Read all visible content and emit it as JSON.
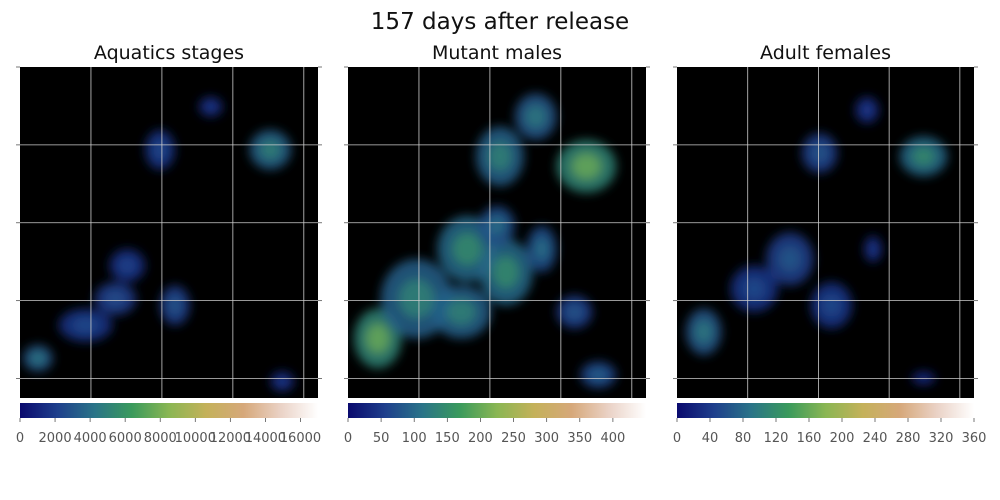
{
  "figure": {
    "suptitle": "157 days after release"
  },
  "colormap": {
    "name": "gist_earth",
    "stops": [
      "#0a0a6e",
      "#1e3f8c",
      "#2a7488",
      "#3a9a5c",
      "#8ab653",
      "#c4b15a",
      "#d6a87a",
      "#ead2c6",
      "#ffffff"
    ]
  },
  "chart_data": [
    {
      "type": "heatmap",
      "title": "Aquatics stages",
      "colorbar": {
        "range": [
          0,
          17000
        ],
        "ticks": [
          0,
          2000,
          4000,
          6000,
          8000,
          10000,
          12000,
          14000,
          16000
        ],
        "tick_labels": [
          "0",
          "2000",
          "4000",
          "6000",
          "8000",
          "10000",
          "12000",
          "14000",
          "16000"
        ]
      },
      "grid": true,
      "axis_tick_labels": false,
      "blobs": [
        {
          "x": 0.06,
          "y": 0.88,
          "rx": 0.05,
          "ry": 0.04,
          "v": 0.18
        },
        {
          "x": 0.22,
          "y": 0.78,
          "rx": 0.09,
          "ry": 0.05,
          "v": 0.1
        },
        {
          "x": 0.32,
          "y": 0.7,
          "rx": 0.07,
          "ry": 0.05,
          "v": 0.11
        },
        {
          "x": 0.52,
          "y": 0.72,
          "rx": 0.05,
          "ry": 0.06,
          "v": 0.12
        },
        {
          "x": 0.47,
          "y": 0.25,
          "rx": 0.05,
          "ry": 0.06,
          "v": 0.1
        },
        {
          "x": 0.64,
          "y": 0.12,
          "rx": 0.04,
          "ry": 0.03,
          "v": 0.08
        },
        {
          "x": 0.84,
          "y": 0.25,
          "rx": 0.07,
          "ry": 0.06,
          "v": 0.2
        },
        {
          "x": 0.36,
          "y": 0.6,
          "rx": 0.06,
          "ry": 0.05,
          "v": 0.09
        },
        {
          "x": 0.88,
          "y": 0.95,
          "rx": 0.04,
          "ry": 0.03,
          "v": 0.08
        }
      ]
    },
    {
      "type": "heatmap",
      "title": "Mutant males",
      "colorbar": {
        "range": [
          0,
          450
        ],
        "ticks": [
          0,
          50,
          100,
          150,
          200,
          250,
          300,
          350,
          400
        ],
        "tick_labels": [
          "0",
          "50",
          "100",
          "150",
          "200",
          "250",
          "300",
          "350",
          "400"
        ]
      },
      "grid": true,
      "axis_tick_labels": false,
      "blobs": [
        {
          "x": 0.1,
          "y": 0.82,
          "rx": 0.08,
          "ry": 0.09,
          "v": 0.3
        },
        {
          "x": 0.23,
          "y": 0.7,
          "rx": 0.12,
          "ry": 0.12,
          "v": 0.2
        },
        {
          "x": 0.38,
          "y": 0.74,
          "rx": 0.1,
          "ry": 0.08,
          "v": 0.2
        },
        {
          "x": 0.4,
          "y": 0.55,
          "rx": 0.1,
          "ry": 0.1,
          "v": 0.22
        },
        {
          "x": 0.53,
          "y": 0.62,
          "rx": 0.09,
          "ry": 0.1,
          "v": 0.22
        },
        {
          "x": 0.5,
          "y": 0.48,
          "rx": 0.06,
          "ry": 0.06,
          "v": 0.16
        },
        {
          "x": 0.65,
          "y": 0.55,
          "rx": 0.05,
          "ry": 0.07,
          "v": 0.16
        },
        {
          "x": 0.51,
          "y": 0.27,
          "rx": 0.08,
          "ry": 0.09,
          "v": 0.2
        },
        {
          "x": 0.63,
          "y": 0.15,
          "rx": 0.07,
          "ry": 0.07,
          "v": 0.18
        },
        {
          "x": 0.8,
          "y": 0.3,
          "rx": 0.1,
          "ry": 0.08,
          "v": 0.3
        },
        {
          "x": 0.76,
          "y": 0.74,
          "rx": 0.06,
          "ry": 0.05,
          "v": 0.12
        },
        {
          "x": 0.84,
          "y": 0.93,
          "rx": 0.06,
          "ry": 0.04,
          "v": 0.14
        }
      ]
    },
    {
      "type": "heatmap",
      "title": "Adult females",
      "colorbar": {
        "range": [
          0,
          360
        ],
        "ticks": [
          0,
          40,
          80,
          120,
          160,
          200,
          240,
          280,
          320,
          360
        ],
        "tick_labels": [
          "0",
          "40",
          "80",
          "120",
          "160",
          "200",
          "240",
          "280",
          "320",
          "360"
        ]
      },
      "grid": true,
      "axis_tick_labels": false,
      "blobs": [
        {
          "x": 0.09,
          "y": 0.8,
          "rx": 0.06,
          "ry": 0.07,
          "v": 0.18
        },
        {
          "x": 0.26,
          "y": 0.67,
          "rx": 0.08,
          "ry": 0.07,
          "v": 0.1
        },
        {
          "x": 0.38,
          "y": 0.58,
          "rx": 0.08,
          "ry": 0.08,
          "v": 0.12
        },
        {
          "x": 0.52,
          "y": 0.72,
          "rx": 0.07,
          "ry": 0.07,
          "v": 0.1
        },
        {
          "x": 0.66,
          "y": 0.55,
          "rx": 0.03,
          "ry": 0.04,
          "v": 0.08
        },
        {
          "x": 0.48,
          "y": 0.26,
          "rx": 0.06,
          "ry": 0.06,
          "v": 0.12
        },
        {
          "x": 0.64,
          "y": 0.13,
          "rx": 0.04,
          "ry": 0.04,
          "v": 0.08
        },
        {
          "x": 0.83,
          "y": 0.27,
          "rx": 0.08,
          "ry": 0.06,
          "v": 0.22
        },
        {
          "x": 0.83,
          "y": 0.94,
          "rx": 0.04,
          "ry": 0.02,
          "v": 0.06
        }
      ]
    }
  ]
}
